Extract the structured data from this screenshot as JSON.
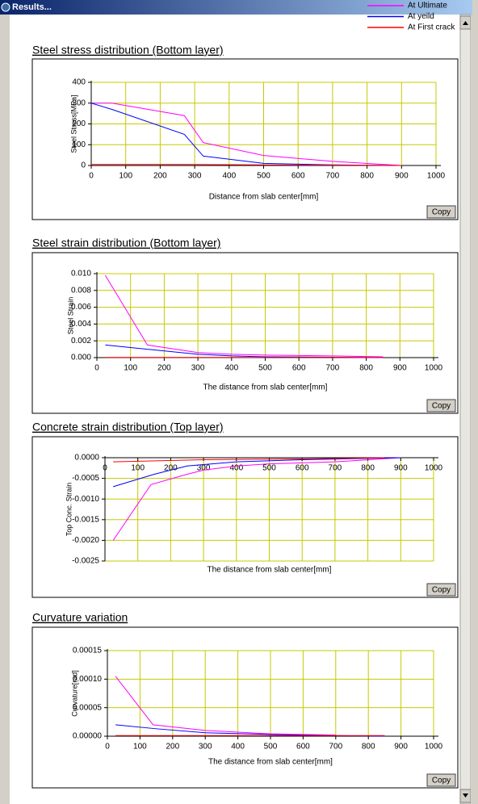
{
  "window_title": "Results...",
  "legend": [
    {
      "name": "At Ultimate",
      "color": "#ff00ff"
    },
    {
      "name": "At yeild",
      "color": "#0000ff"
    },
    {
      "name": "At First crack",
      "color": "#ff0000"
    }
  ],
  "chart_data": [
    {
      "type": "line",
      "title": "Steel stress distribution (Bottom layer)",
      "x_label": "Distance from slab center[mm]",
      "y_label": "Steel Stress[MPa]",
      "button": "Copy",
      "xlim": [
        0,
        1000
      ],
      "xticks": [
        0,
        100,
        200,
        300,
        400,
        500,
        600,
        700,
        800,
        900,
        1000
      ],
      "ylim": [
        0,
        400
      ],
      "yticks": [
        0,
        100,
        200,
        300,
        400
      ],
      "grid": true,
      "series": [
        {
          "x": [
            0,
            60,
            270,
            325,
            500,
            700,
            850,
            900
          ],
          "values": [
            300,
            300,
            240,
            110,
            48,
            20,
            5,
            0
          ]
        },
        {
          "x": [
            0,
            60,
            270,
            325,
            500,
            700,
            900
          ],
          "values": [
            300,
            270,
            150,
            45,
            10,
            3,
            0
          ]
        },
        {
          "x": [
            0,
            270,
            500,
            900
          ],
          "values": [
            5,
            5,
            3,
            0
          ]
        }
      ]
    },
    {
      "type": "line",
      "title": "Steel strain distribution (Bottom layer)",
      "x_label": "The distance from slab center[mm]",
      "y_label": "Steel Strain",
      "button": "Copy",
      "xlim": [
        0,
        1000
      ],
      "xticks": [
        0,
        100,
        200,
        300,
        400,
        500,
        600,
        700,
        800,
        900,
        1000
      ],
      "ylim": [
        0,
        0.01
      ],
      "yticks": [
        {
          "value": 0,
          "label": "0.000"
        },
        {
          "value": 0.002,
          "label": "0.002"
        },
        {
          "value": 0.004,
          "label": "0.004"
        },
        {
          "value": 0.006,
          "label": "0.006"
        },
        {
          "value": 0.008,
          "label": "0.008"
        },
        {
          "value": 0.01,
          "label": "0.010"
        }
      ],
      "grid": true,
      "series": [
        {
          "x": [
            25,
            150,
            300,
            400,
            500,
            700,
            850
          ],
          "values": [
            0.0098,
            0.0015,
            0.0006,
            0.0004,
            0.0003,
            0.0002,
            0.0001
          ]
        },
        {
          "x": [
            25,
            150,
            300,
            400,
            500,
            700,
            850
          ],
          "values": [
            0.0015,
            0.001,
            0.0004,
            0.0002,
            0.0001,
            5e-05,
            0
          ]
        },
        {
          "x": [
            25,
            850
          ],
          "values": [
            3e-05,
            3e-05
          ]
        }
      ]
    },
    {
      "type": "line",
      "title": "Concrete strain distribution (Top layer)",
      "x_label": "The distance from slab center[mm]",
      "y_label": "Top Conc. Strain",
      "button": "Copy",
      "xlim": [
        0,
        1000
      ],
      "xticks": [
        0,
        100,
        200,
        300,
        400,
        500,
        600,
        700,
        800,
        900,
        1000
      ],
      "ylim": [
        -0.0025,
        0
      ],
      "yticks": [
        {
          "value": 0,
          "label": "0.0000"
        },
        {
          "value": -0.0005,
          "label": "-0.0005"
        },
        {
          "value": -0.001,
          "label": "-0.0010"
        },
        {
          "value": -0.0015,
          "label": "-0.0015"
        },
        {
          "value": -0.002,
          "label": "-0.0020"
        },
        {
          "value": -0.0025,
          "label": "-0.0025"
        }
      ],
      "grid": true,
      "series": [
        {
          "x": [
            25,
            140,
            250,
            300,
            400,
            500,
            700,
            900
          ],
          "values": [
            -0.002,
            -0.00065,
            -0.0004,
            -0.0003,
            -0.0002,
            -0.00015,
            -0.0001,
            0
          ]
        },
        {
          "x": [
            25,
            150,
            250,
            400,
            600,
            900
          ],
          "values": [
            -0.0007,
            -0.0004,
            -0.0002,
            -0.0001,
            -5e-05,
            0
          ]
        },
        {
          "x": [
            25,
            300,
            700,
            850
          ],
          "values": [
            -0.0001,
            -5e-05,
            -2e-05,
            0
          ]
        }
      ]
    },
    {
      "type": "line",
      "title": "Curvature variation",
      "x_label": "The distance from slab center[mm]",
      "y_label": "Curvature[rad]",
      "button": "Copy",
      "xlim": [
        0,
        1000
      ],
      "xticks": [
        0,
        100,
        200,
        300,
        400,
        500,
        600,
        700,
        800,
        900,
        1000
      ],
      "ylim": [
        0,
        0.00015
      ],
      "yticks": [
        {
          "value": 0,
          "label": "0.00000"
        },
        {
          "value": 5e-05,
          "label": "0.00005"
        },
        {
          "value": 0.0001,
          "label": "0.00010"
        },
        {
          "value": 0.00015,
          "label": "0.00015"
        }
      ],
      "grid": true,
      "series": [
        {
          "x": [
            25,
            140,
            300,
            500,
            700
          ],
          "values": [
            0.000105,
            2e-05,
            1e-05,
            4e-06,
            2e-06
          ]
        },
        {
          "x": [
            25,
            150,
            300,
            500,
            700,
            850
          ],
          "values": [
            2e-05,
            1.3e-05,
            6e-06,
            3e-06,
            1e-06,
            0
          ]
        },
        {
          "x": [
            25,
            850
          ],
          "values": [
            1e-06,
            1e-06
          ]
        }
      ]
    }
  ]
}
